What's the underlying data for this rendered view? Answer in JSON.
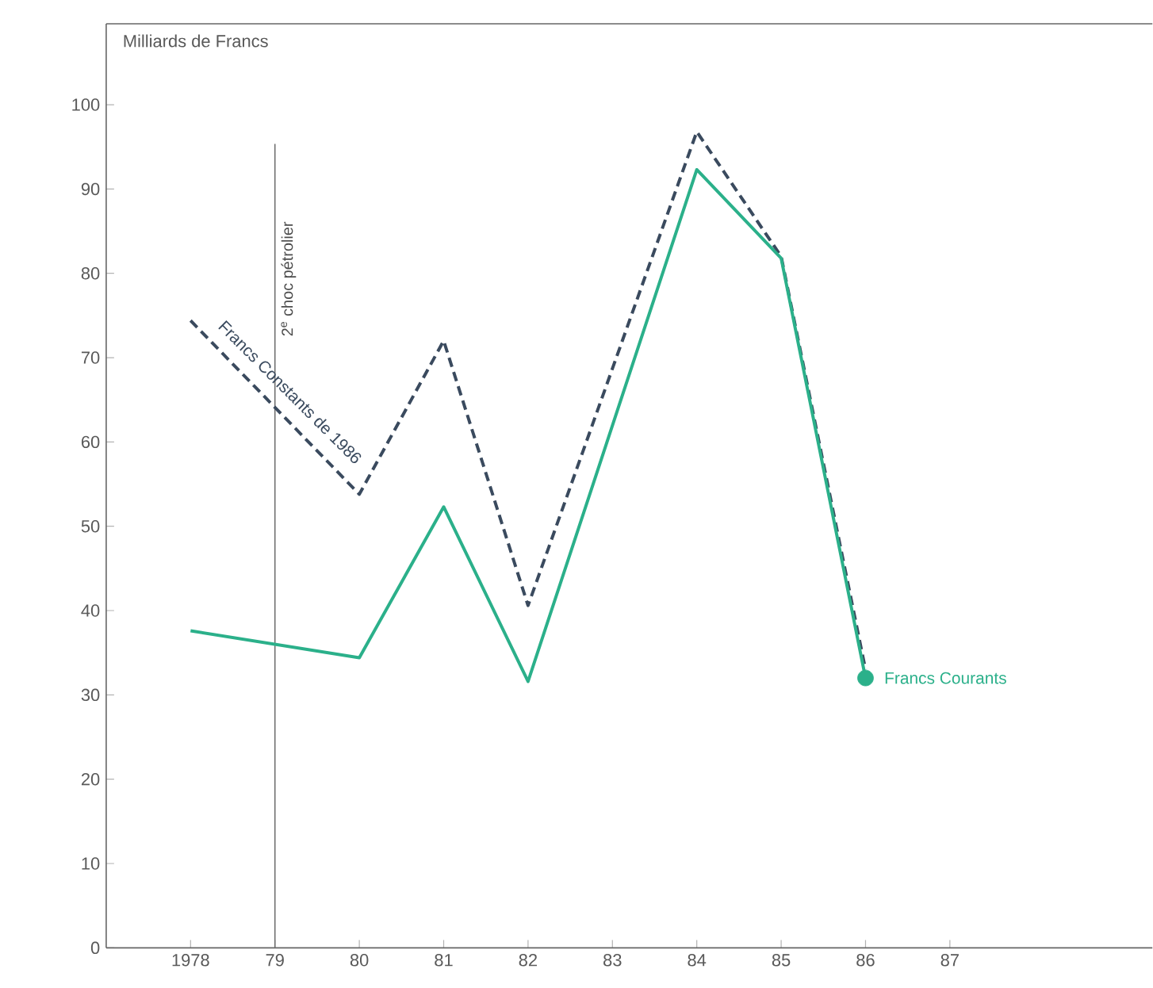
{
  "chart_data": {
    "type": "line",
    "ylabel": "Milliards de Francs",
    "x": [
      1978,
      1980,
      1981,
      1982,
      1984,
      1985,
      1986
    ],
    "series": [
      {
        "name": "Francs Constants de 1986",
        "color": "#3a4a5e",
        "line_style": "dashed",
        "values": [
          74.4,
          53.8,
          72,
          40.6,
          96.8,
          82,
          33
        ]
      },
      {
        "name": "Francs Courants",
        "color": "#2bb08a",
        "line_style": "solid",
        "values": [
          37.6,
          34.4,
          52.3,
          31.6,
          92.3,
          81.8,
          32
        ]
      },
      {
        "type": "scatter",
        "color": "#2bb08a",
        "marker": "circle",
        "x": [
          1986
        ],
        "values": [
          32
        ]
      }
    ],
    "xlim": [
      1977,
      1989.4
    ],
    "ylim": [
      0,
      109.6
    ],
    "xticks": [
      1978,
      {
        "value": 1979,
        "label": "79"
      },
      {
        "value": 1980,
        "label": "80"
      },
      {
        "value": 1981,
        "label": "81"
      },
      {
        "value": 1982,
        "label": "82"
      },
      {
        "value": 1983,
        "label": "83"
      },
      {
        "value": 1984,
        "label": "84"
      },
      {
        "value": 1985,
        "label": "85"
      },
      {
        "value": 1986,
        "label": "86"
      },
      {
        "value": 1987,
        "label": "87"
      }
    ],
    "yticks": [
      0,
      10,
      20,
      30,
      40,
      50,
      60,
      70,
      80,
      90,
      100
    ],
    "ref_lines": [
      {
        "axis": "x",
        "value": 1979,
        "label": "2$^{e}$ choc pétrolier",
        "color": "#707070"
      }
    ]
  }
}
